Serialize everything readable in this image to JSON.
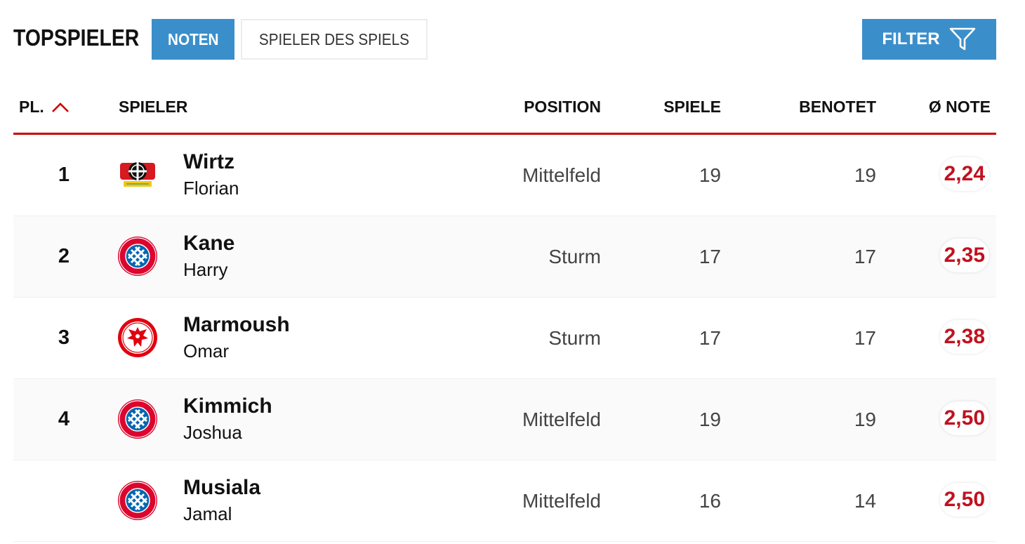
{
  "header": {
    "title": "TOPSPIELER",
    "tabs": [
      {
        "label": "NOTEN",
        "active": true
      },
      {
        "label": "SPIELER DES SPIELS",
        "active": false
      }
    ],
    "filter_label": "FILTER"
  },
  "table": {
    "columns": {
      "rank": "PL.",
      "player": "SPIELER",
      "position": "POSITION",
      "games": "SPIELE",
      "rated": "BENOTET",
      "avg": "Ø NOTE"
    },
    "sort_icon": "chevron-up-icon",
    "rows": [
      {
        "rank": "1",
        "last": "Wirtz",
        "first": "Florian",
        "crest": "leverkusen-crest-icon",
        "position": "Mittelfeld",
        "games": "19",
        "rated": "19",
        "avg": "2,24"
      },
      {
        "rank": "2",
        "last": "Kane",
        "first": "Harry",
        "crest": "bayern-crest-icon",
        "position": "Sturm",
        "games": "17",
        "rated": "17",
        "avg": "2,35"
      },
      {
        "rank": "3",
        "last": "Marmoush",
        "first": "Omar",
        "crest": "frankfurt-crest-icon",
        "position": "Sturm",
        "games": "17",
        "rated": "17",
        "avg": "2,38"
      },
      {
        "rank": "4",
        "last": "Kimmich",
        "first": "Joshua",
        "crest": "bayern-crest-icon",
        "position": "Mittelfeld",
        "games": "19",
        "rated": "19",
        "avg": "2,50"
      },
      {
        "rank": "",
        "last": "Musiala",
        "first": "Jamal",
        "crest": "bayern-crest-icon",
        "position": "Mittelfeld",
        "games": "16",
        "rated": "14",
        "avg": "2,50"
      }
    ]
  },
  "colors": {
    "accent_blue": "#3a8fcb",
    "accent_red": "#c0111f",
    "divider_red": "#cc0000"
  }
}
